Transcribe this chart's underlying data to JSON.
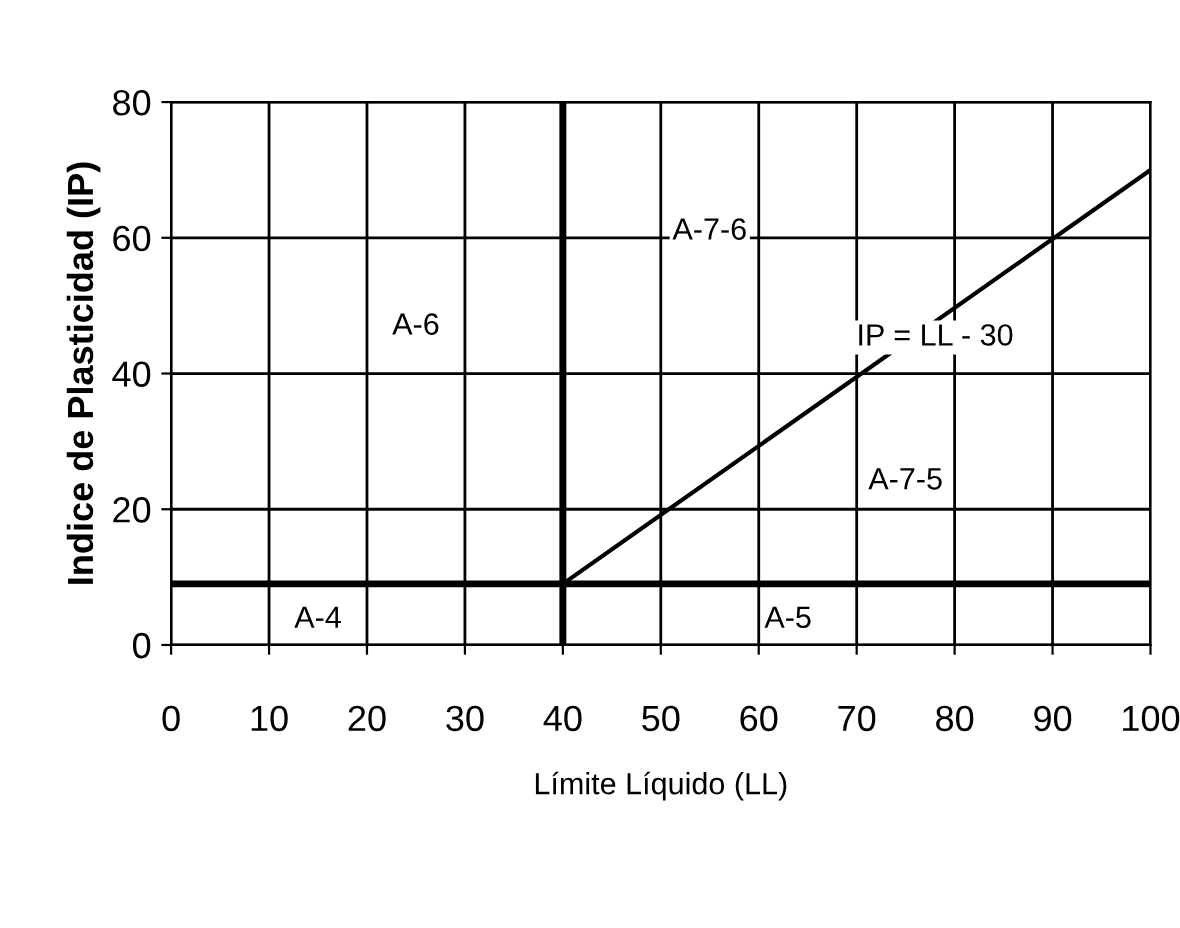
{
  "chart_data": {
    "type": "line",
    "xlabel": "Límite Líquido (LL)",
    "ylabel": "Indice de Plasticidad (IP)",
    "xlim": [
      0,
      100
    ],
    "ylim": [
      0,
      80
    ],
    "xticks": [
      0,
      10,
      20,
      30,
      40,
      50,
      60,
      70,
      80,
      90,
      100
    ],
    "yticks": [
      0,
      20,
      40,
      60,
      80
    ],
    "grid": true,
    "series": [
      {
        "x": [
          40,
          100
        ],
        "values": [
          9,
          70
        ],
        "color": "#000000"
      }
    ],
    "ref_lines": [
      {
        "axis": "y",
        "value": 9,
        "color": "#000000"
      },
      {
        "axis": "x",
        "value": 40,
        "color": "#000000"
      }
    ],
    "annotations": [
      "A-6",
      "A-7-6",
      "IP = LL - 30",
      "A-7-5",
      "A-4",
      "A-5"
    ]
  }
}
